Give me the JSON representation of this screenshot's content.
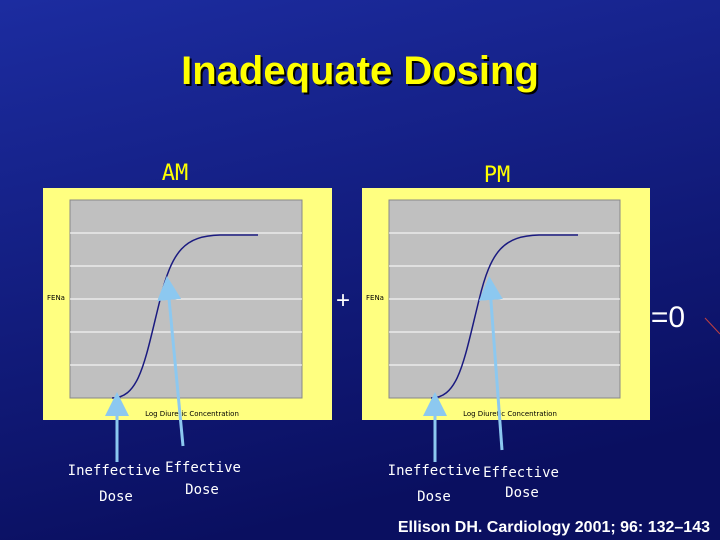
{
  "title": "Inadequate Dosing",
  "panels": [
    {
      "label": "AM",
      "y_axis_label": "FENa",
      "x_axis_label": "Log Diuretic Concentration",
      "arrows": [
        {
          "line1": "Ineffective",
          "line2": "Dose"
        },
        {
          "line1": "Effective",
          "line2": "Dose"
        }
      ]
    },
    {
      "label": "PM",
      "y_axis_label": "FENa",
      "x_axis_label": "Log Diuretic Concentration",
      "arrows": [
        {
          "line1": "Ineffective",
          "line2": "Dose"
        },
        {
          "line1": "Effective",
          "line2": "Dose"
        }
      ]
    }
  ],
  "operators": [
    "+",
    "=0"
  ],
  "citation": "Ellison DH. Cardiology 2001; 96: 132–143"
}
